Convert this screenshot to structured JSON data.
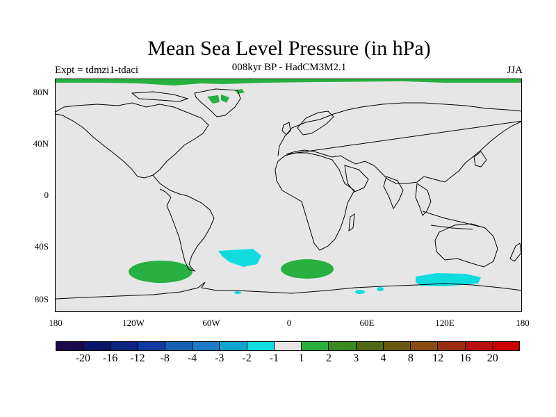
{
  "header": {
    "title": "Mean Sea Level Pressure (in hPa)",
    "subtitle": "008kyr BP - HadCM3M2.1",
    "experiment": "Expt = tdmzi1-tdaci",
    "season": "JJA"
  },
  "axes": {
    "lat_labels": [
      "80N",
      "40N",
      "0",
      "40S",
      "80S"
    ],
    "lon_labels": [
      "180",
      "120W",
      "60W",
      "0",
      "60E",
      "120E",
      "180"
    ]
  },
  "colorbar": {
    "colors": [
      "#1a0a4a",
      "#0b1468",
      "#0d2580",
      "#0f3aa0",
      "#1560b4",
      "#1a7cc4",
      "#10a4d0",
      "#10dce0",
      "#e6e6e6",
      "#28b040",
      "#3a8a20",
      "#506810",
      "#6a5a10",
      "#8a4c10",
      "#9a2a10",
      "#b81010",
      "#cc0000"
    ],
    "labels": [
      "-20",
      "-16",
      "-12",
      "-8",
      "-4",
      "-3",
      "-2",
      "-1",
      "1",
      "2",
      "3",
      "4",
      "8",
      "12",
      "16",
      "20"
    ]
  },
  "colors": {
    "positive": "#28b040",
    "negative": "#10dce0",
    "land_outline": "#000000",
    "background": "#e6e6e6"
  }
}
